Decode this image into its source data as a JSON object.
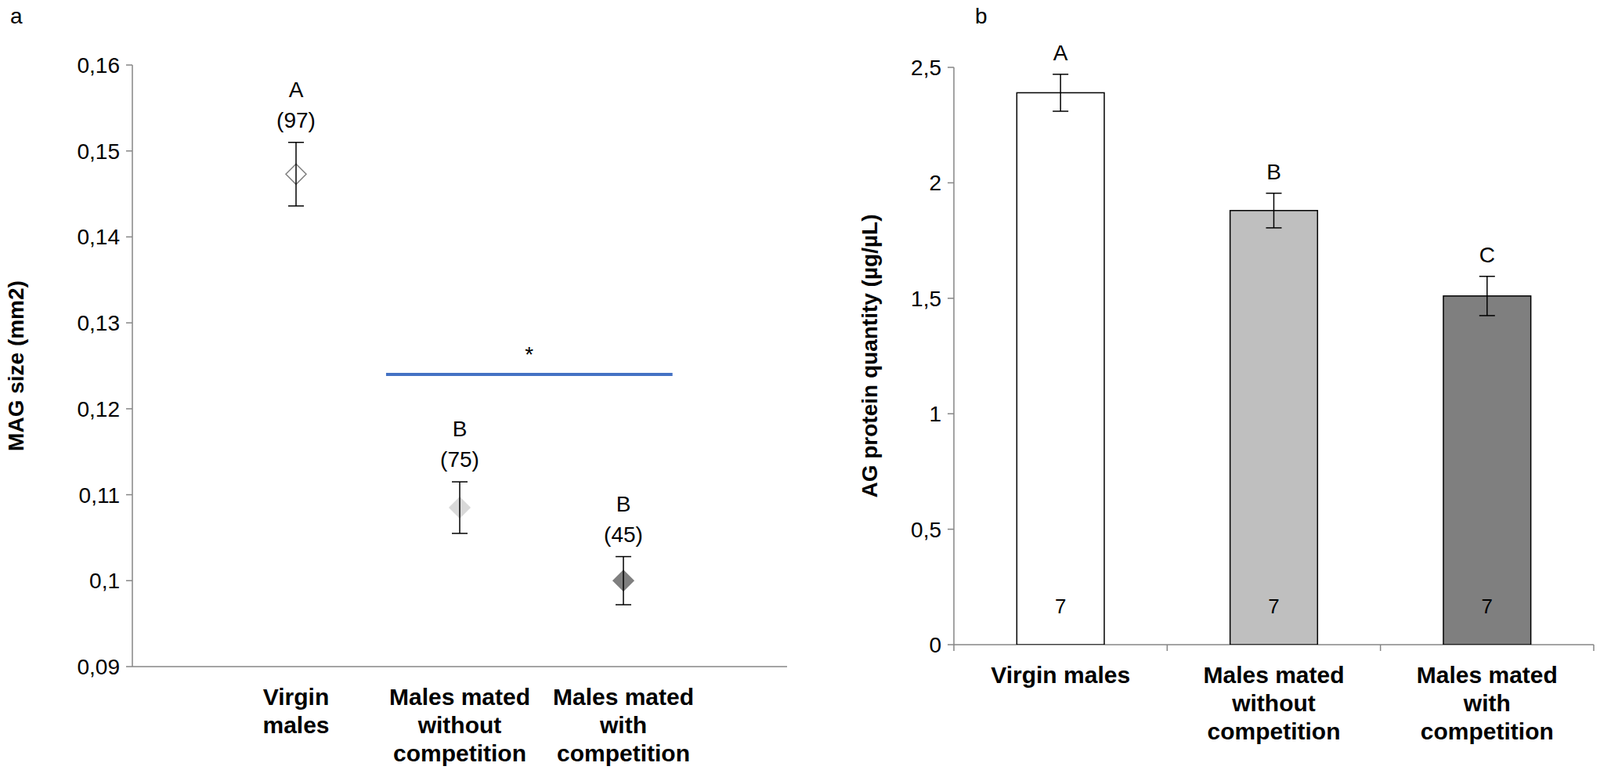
{
  "chart_data": [
    {
      "type": "dot",
      "panel_label": "a",
      "y_label": "MAG size (mm2)",
      "categories": [
        "Virgin\nmales",
        "Males mated\nwithout\ncompetition",
        "Males mated\nwith\ncompetition"
      ],
      "values": [
        0.1473,
        0.1085,
        0.1
      ],
      "errors": [
        0.0037,
        0.003,
        0.0028
      ],
      "colors": [
        "#ffffff",
        "#d9d9d9",
        "#7f7f7f"
      ],
      "marker": "diamond",
      "group_letters": [
        "A",
        "B",
        "B"
      ],
      "sample_size_labels": [
        "(97)",
        "(75)",
        "(45)"
      ],
      "significance": {
        "between": [
          1,
          2
        ],
        "y": 0.124,
        "label": "*",
        "color": "#4472c4"
      },
      "ylim": [
        0.09,
        0.16
      ],
      "yticks": [
        {
          "value": 0.09,
          "label": "0,09"
        },
        {
          "value": 0.1,
          "label": "0,1"
        },
        {
          "value": 0.11,
          "label": "0,11"
        },
        {
          "value": 0.12,
          "label": "0,12"
        },
        {
          "value": 0.13,
          "label": "0,13"
        },
        {
          "value": 0.14,
          "label": "0,14"
        },
        {
          "value": 0.15,
          "label": "0,15"
        },
        {
          "value": 0.16,
          "label": "0,16"
        }
      ],
      "grid": false
    },
    {
      "type": "bar",
      "panel_label": "b",
      "y_label": "AG protein quantity (µg/µL)",
      "categories": [
        "Virgin males",
        "Males mated\nwithout\ncompetition",
        "Males mated\nwith\ncompetition"
      ],
      "values": [
        2.39,
        1.88,
        1.51
      ],
      "errors": [
        0.08,
        0.075,
        0.085
      ],
      "colors": [
        "#ffffff",
        "#bfbfbf",
        "#7f7f7f"
      ],
      "group_letters": [
        "A",
        "B",
        "C"
      ],
      "sample_sizes": [
        7,
        7,
        7
      ],
      "ylim": [
        0,
        2.5
      ],
      "yticks": [
        0,
        {
          "value": 0.5,
          "label": "0,5"
        },
        1,
        {
          "value": 1.5,
          "label": "1,5"
        },
        2,
        {
          "value": 2.5,
          "label": "2,5"
        }
      ],
      "grid": false
    }
  ]
}
